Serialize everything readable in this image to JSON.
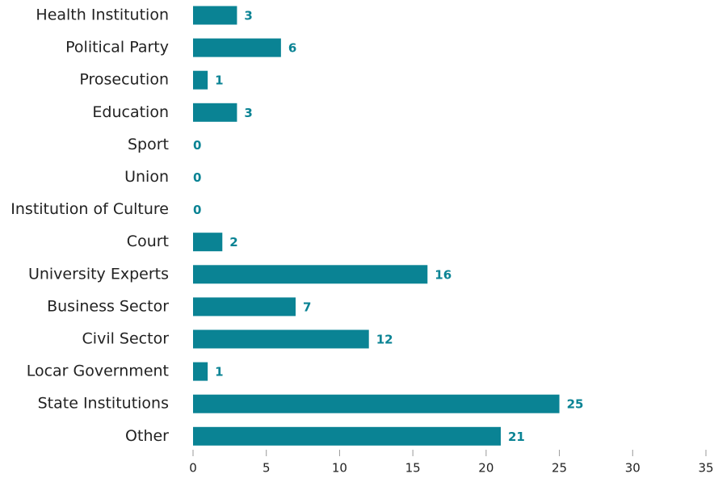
{
  "chart_data": {
    "type": "bar",
    "orientation": "horizontal",
    "categories": [
      "Health Institution",
      "Political Party",
      "Prosecution",
      "Education",
      "Sport",
      "Union",
      "Institution of Culture",
      "Court",
      "University Experts",
      "Business Sector",
      "Civil Sector",
      "Locar Government",
      "State Institutions",
      "Other"
    ],
    "values": [
      3,
      6,
      1,
      3,
      0,
      0,
      0,
      2,
      16,
      7,
      12,
      1,
      25,
      21
    ],
    "color": "#0a8394",
    "xlim": [
      0,
      35
    ],
    "xticks": [
      0,
      5,
      10,
      15,
      20,
      25,
      30,
      35
    ],
    "grid": false
  }
}
